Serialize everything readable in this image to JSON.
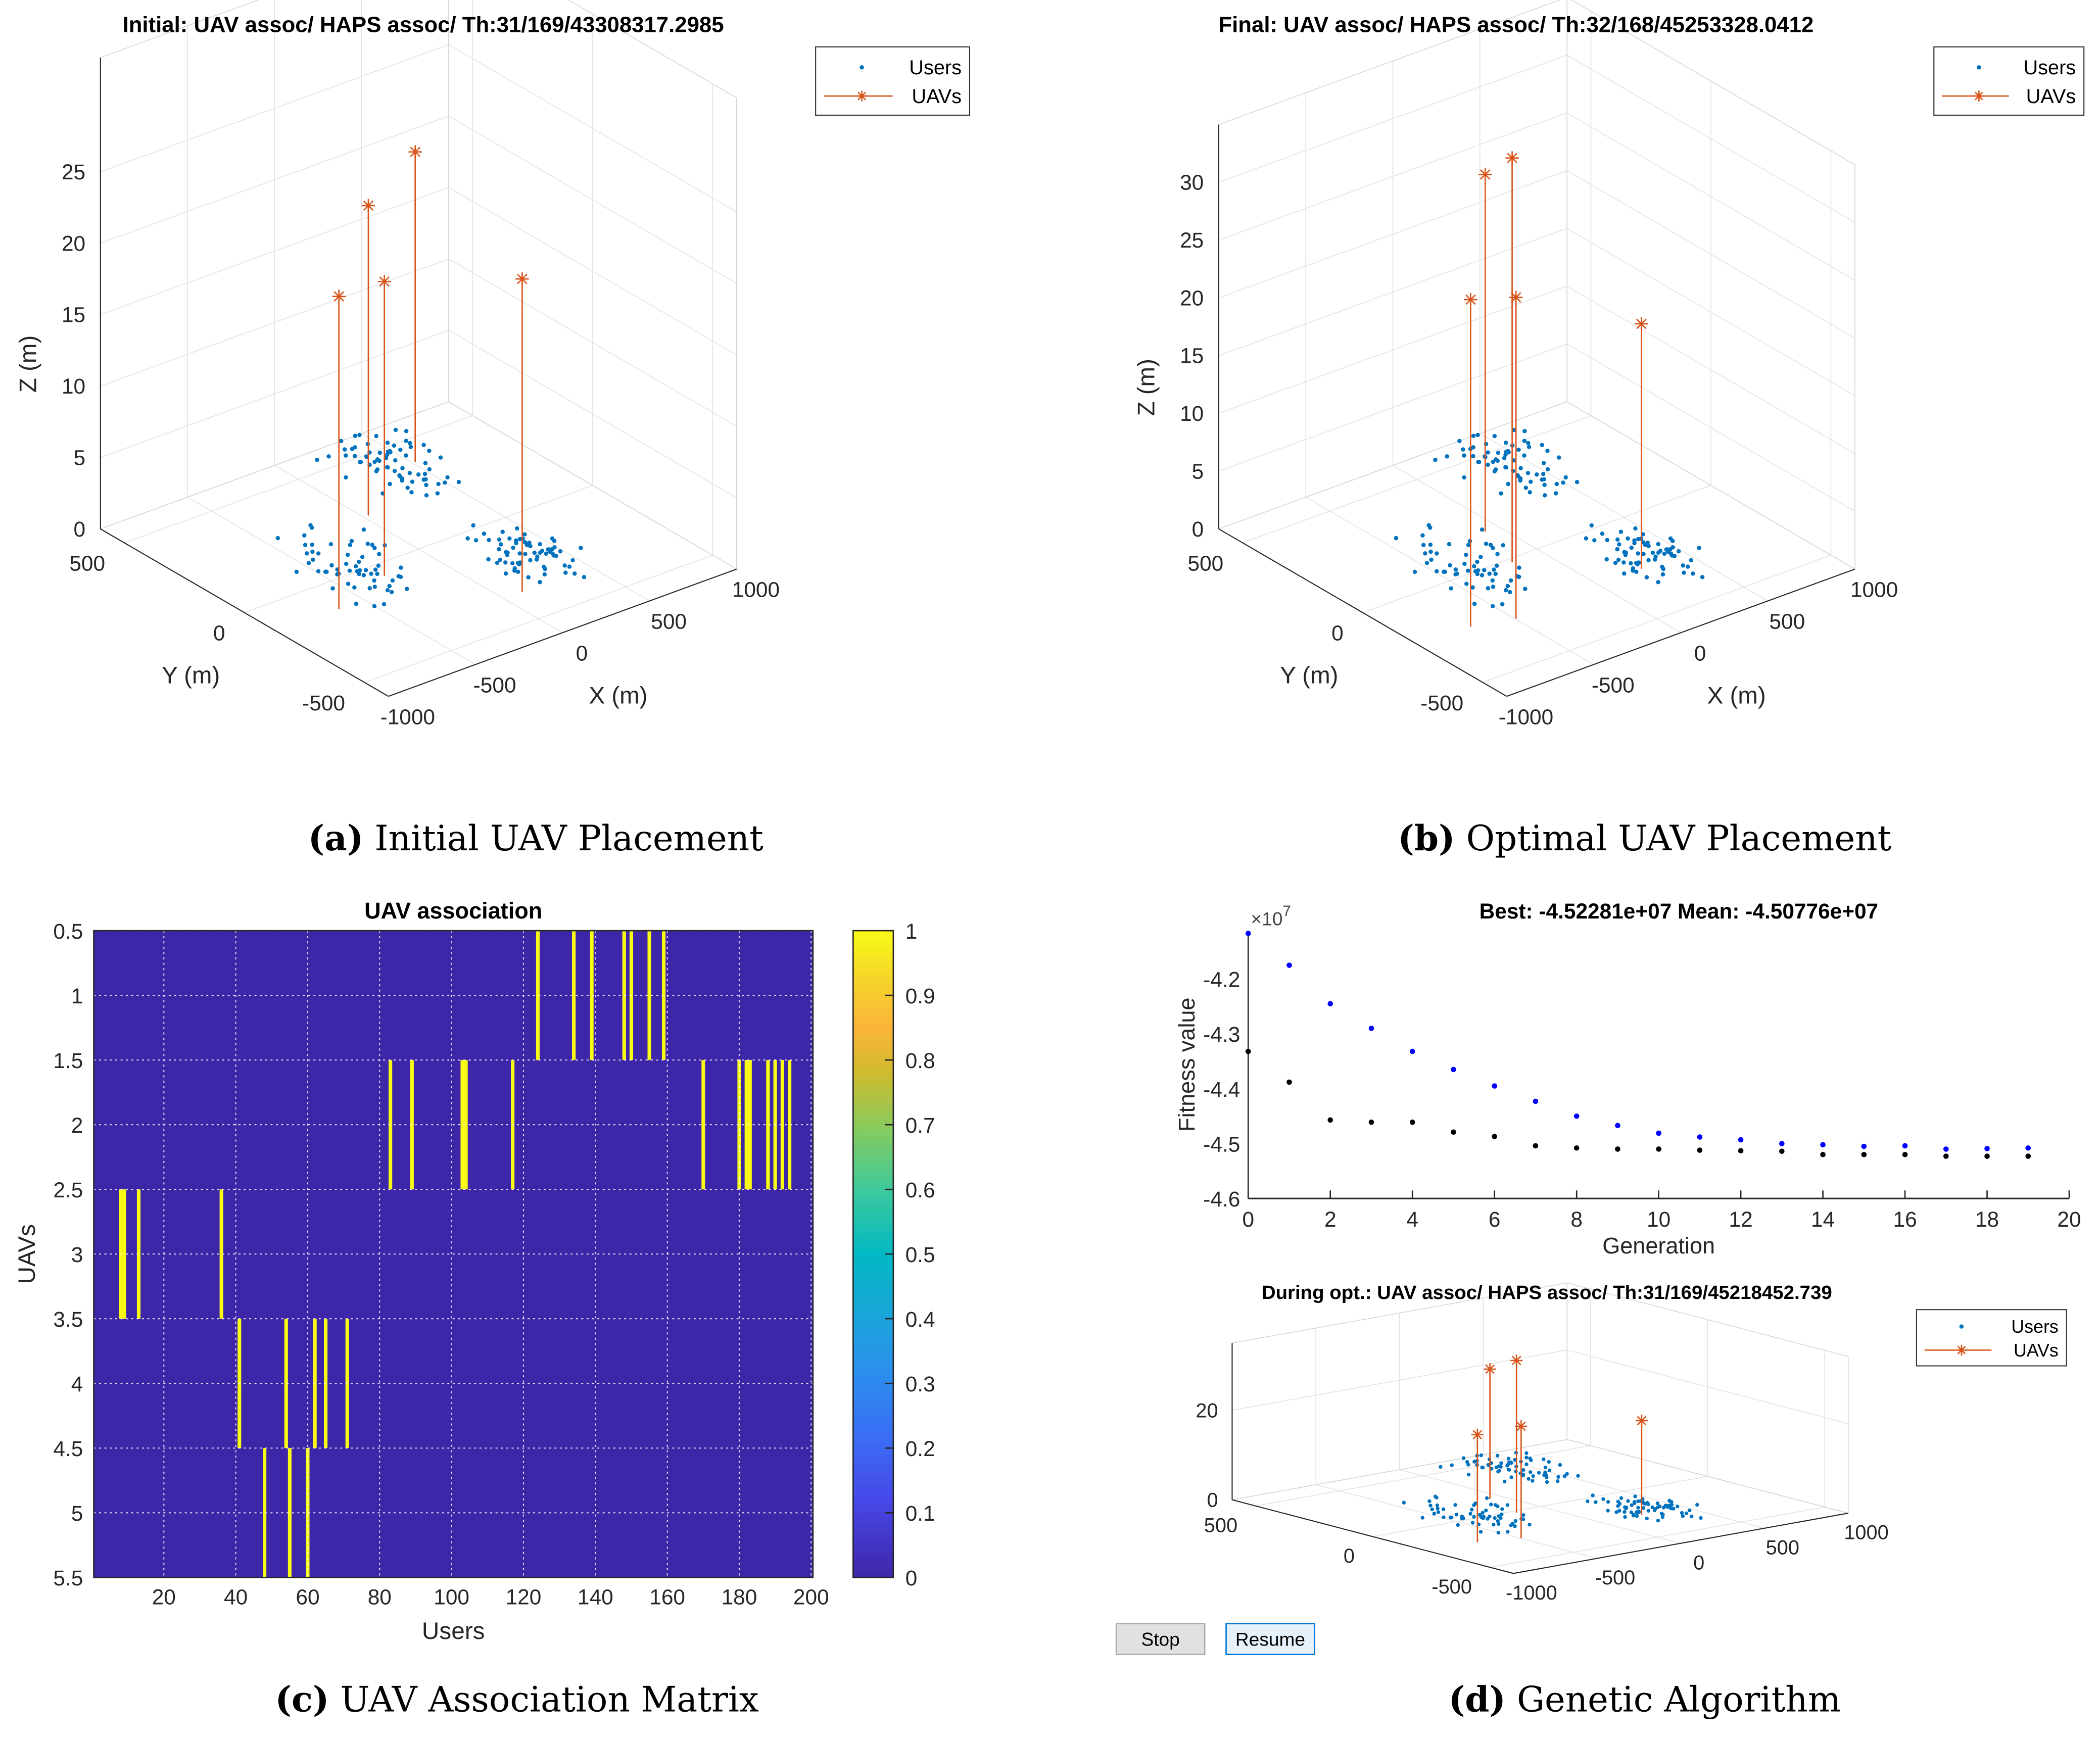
{
  "captions": {
    "a": {
      "letter": "(a)",
      "text": " Initial UAV Placement"
    },
    "b": {
      "letter": "(b)",
      "text": " Optimal UAV Placement"
    },
    "c": {
      "letter": "(c)",
      "text": " UAV Association Matrix"
    },
    "d": {
      "letter": "(d)",
      "text": " Genetic Algorithm"
    }
  },
  "buttons": {
    "stop": "Stop",
    "resume": "Resume"
  },
  "colors": {
    "users": "#0072bd",
    "uavs": "#d95319",
    "best": "#000000",
    "mean": "#0000ff",
    "matrix_zero": "#3e26a8",
    "matrix_one": "#f9fb15"
  },
  "chart_data": [
    {
      "id": "initial",
      "type": "scatter3d",
      "title": "Initial: UAV assoc/ HAPS assoc/ Th:31/169/43308317.2985",
      "xlabel": "X (m)",
      "ylabel": "Y (m)",
      "zlabel": "Z (m)",
      "xlim": [
        -1000,
        1000
      ],
      "ylim": [
        -600,
        600
      ],
      "zlim": [
        0,
        33
      ],
      "xticks": [
        -1000,
        -500,
        0,
        500,
        1000
      ],
      "yticks": [
        -500,
        0,
        500
      ],
      "zticks": [
        0,
        5,
        10,
        15,
        20,
        25
      ],
      "legend": [
        "Users",
        "UAVs"
      ],
      "legend_position": "top-right",
      "user_clusters": [
        {
          "x": -330,
          "y": 50,
          "spread": 230,
          "count": 60
        },
        {
          "x": 420,
          "y": 430,
          "spread": 230,
          "count": 70
        },
        {
          "x": 350,
          "y": -200,
          "spread": 160,
          "count": 70
        }
      ],
      "uavs": [
        {
          "x": -646,
          "y": -137,
          "z": 21.9
        },
        {
          "x": 26,
          "y": 228,
          "z": 21.7
        },
        {
          "x": -283,
          "y": -63,
          "z": 20.6
        },
        {
          "x": 517,
          "y": 389,
          "z": 21.7
        },
        {
          "x": 106,
          "y": -355,
          "z": 21.9
        }
      ]
    },
    {
      "id": "final",
      "type": "scatter3d",
      "title": "Final: UAV assoc/ HAPS assoc/ Th:32/168/45253328.0412",
      "xlabel": "X (m)",
      "ylabel": "Y (m)",
      "zlabel": "Z (m)",
      "xlim": [
        -1000,
        1000
      ],
      "ylim": [
        -600,
        600
      ],
      "zlim": [
        0,
        35
      ],
      "xticks": [
        -1000,
        -500,
        0,
        500,
        1000
      ],
      "yticks": [
        -500,
        0,
        500
      ],
      "zticks": [
        0,
        5,
        10,
        15,
        20,
        25,
        30
      ],
      "legend": [
        "Users",
        "UAVs"
      ],
      "legend_position": "top-right",
      "user_clusters": [
        {
          "x": -330,
          "y": 50,
          "spread": 230,
          "count": 60
        },
        {
          "x": 420,
          "y": 430,
          "spread": 230,
          "count": 70
        },
        {
          "x": 350,
          "y": -200,
          "spread": 160,
          "count": 70
        }
      ],
      "uavs": [
        {
          "x": -704,
          "y": -235,
          "z": 28.3
        },
        {
          "x": -76,
          "y": 160,
          "z": 30.9
        },
        {
          "x": -168,
          "y": -19,
          "z": 35
        },
        {
          "x": -496,
          "y": -273,
          "z": 27.8
        },
        {
          "x": 249,
          "y": -255,
          "z": 21.2
        }
      ]
    },
    {
      "id": "association",
      "type": "heatmap",
      "title": "UAV association",
      "xlabel": "Users",
      "ylabel": "UAVs",
      "xlim": [
        0.5,
        200.5
      ],
      "ylim": [
        0.5,
        5.5
      ],
      "xticks": [
        20,
        40,
        60,
        80,
        100,
        120,
        140,
        160,
        180,
        200
      ],
      "yticks": [
        0.5,
        1,
        1.5,
        2,
        2.5,
        3,
        3.5,
        4,
        4.5,
        5,
        5.5
      ],
      "colorbar_ticks": [
        0,
        0.1,
        0.2,
        0.3,
        0.4,
        0.5,
        0.6,
        0.7,
        0.8,
        0.9,
        1
      ],
      "colorbar_tick_labels": [
        "0",
        "0.1",
        "0.2",
        "0.3",
        "0.4",
        "0.5",
        "0.6",
        "0.7",
        "0.8",
        "0.9",
        "1"
      ],
      "associations": [
        {
          "uav": 1,
          "users": [
            124,
            134,
            139,
            148,
            150,
            155,
            159
          ]
        },
        {
          "uav": 2,
          "users": [
            83,
            89,
            103,
            104,
            117,
            170,
            180,
            182,
            183,
            188,
            190,
            192,
            194
          ]
        },
        {
          "uav": 3,
          "users": [
            8,
            9,
            13,
            36
          ]
        },
        {
          "uav": 4,
          "users": [
            41,
            54,
            62,
            65,
            71
          ]
        },
        {
          "uav": 5,
          "users": [
            48,
            55,
            60
          ]
        }
      ]
    },
    {
      "id": "ga",
      "type": "scatter",
      "title": "Best: -4.52281e+07 Mean: -4.50776e+07",
      "xlabel": "Generation",
      "ylabel": "Fitness value",
      "exponent_label": "×10",
      "exponent": "7",
      "xlim": [
        0,
        20
      ],
      "ylim": [
        -4.6,
        -4.112
      ],
      "xticks": [
        0,
        2,
        4,
        6,
        8,
        10,
        12,
        14,
        16,
        18,
        20
      ],
      "yticks": [
        -4.6,
        -4.5,
        -4.4,
        -4.3,
        -4.2
      ],
      "ytick_labels": [
        "-4.6",
        "-4.5",
        "-4.4",
        "-4.3",
        "-4.2"
      ],
      "x": [
        0,
        1,
        2,
        3,
        4,
        5,
        6,
        7,
        8,
        9,
        10,
        11,
        12,
        13,
        14,
        15,
        16,
        17,
        18,
        19
      ],
      "series": [
        {
          "name": "Best",
          "values": [
            -4.332,
            -4.388,
            -4.457,
            -4.461,
            -4.461,
            -4.479,
            -4.487,
            -4.504,
            -4.508,
            -4.51,
            -4.51,
            -4.512,
            -4.513,
            -4.514,
            -4.52,
            -4.52,
            -4.52,
            -4.523,
            -4.523,
            -4.523
          ]
        },
        {
          "name": "Mean",
          "values": [
            -4.117,
            -4.175,
            -4.245,
            -4.29,
            -4.332,
            -4.365,
            -4.395,
            -4.423,
            -4.45,
            -4.467,
            -4.481,
            -4.488,
            -4.493,
            -4.5,
            -4.502,
            -4.505,
            -4.504,
            -4.51,
            -4.509,
            -4.508
          ]
        }
      ]
    },
    {
      "id": "during",
      "type": "scatter3d",
      "title": "During opt.: UAV assoc/ HAPS assoc/ Th:31/169/45218452.739",
      "xlim": [
        -1000,
        1000
      ],
      "ylim": [
        -600,
        600
      ],
      "zlim": [
        0,
        35
      ],
      "xticks": [
        -1000,
        -500,
        0,
        500,
        1000
      ],
      "yticks": [
        -500,
        0,
        500
      ],
      "zticks": [
        0,
        20
      ],
      "legend": [
        "Users",
        "UAVs"
      ],
      "legend_position": "top-right",
      "user_clusters": [
        {
          "x": -330,
          "y": 50,
          "spread": 230,
          "count": 60
        },
        {
          "x": 420,
          "y": 430,
          "spread": 230,
          "count": 70
        },
        {
          "x": 350,
          "y": -200,
          "spread": 160,
          "count": 70
        }
      ],
      "uavs": [
        {
          "x": -704,
          "y": -235,
          "z": 24
        },
        {
          "x": -76,
          "y": 160,
          "z": 29
        },
        {
          "x": -168,
          "y": -19,
          "z": 34
        },
        {
          "x": -496,
          "y": -273,
          "z": 25
        },
        {
          "x": 249,
          "y": -255,
          "z": 21
        }
      ]
    }
  ]
}
